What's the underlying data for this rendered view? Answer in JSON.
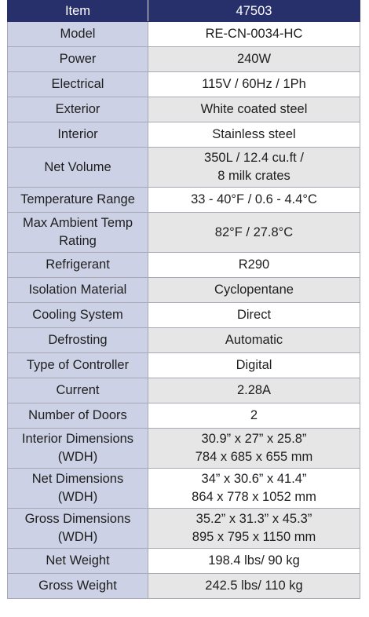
{
  "header": {
    "label": "Item",
    "value": "47503"
  },
  "rows": [
    {
      "label": [
        "Model"
      ],
      "value": [
        "RE-CN-0034-HC"
      ]
    },
    {
      "label": [
        "Power"
      ],
      "value": [
        "240W"
      ]
    },
    {
      "label": [
        "Electrical"
      ],
      "value": [
        "115V / 60Hz / 1Ph"
      ]
    },
    {
      "label": [
        "Exterior"
      ],
      "value": [
        "White coated steel"
      ]
    },
    {
      "label": [
        "Interior"
      ],
      "value": [
        "Stainless steel"
      ]
    },
    {
      "label": [
        "Net Volume"
      ],
      "value": [
        "350L / 12.4 cu.ft /",
        "8 milk crates"
      ]
    },
    {
      "label": [
        "Temperature Range"
      ],
      "value": [
        "33 - 40°F / 0.6 - 4.4°C"
      ]
    },
    {
      "label": [
        "Max Ambient Temp",
        "Rating"
      ],
      "value": [
        "82°F / 27.8°C"
      ]
    },
    {
      "label": [
        "Refrigerant"
      ],
      "value": [
        "R290"
      ]
    },
    {
      "label": [
        "Isolation Material"
      ],
      "value": [
        "Cyclopentane"
      ]
    },
    {
      "label": [
        "Cooling System"
      ],
      "value": [
        "Direct"
      ]
    },
    {
      "label": [
        "Defrosting"
      ],
      "value": [
        "Automatic"
      ]
    },
    {
      "label": [
        "Type of Controller"
      ],
      "value": [
        "Digital"
      ]
    },
    {
      "label": [
        "Current"
      ],
      "value": [
        "2.28A"
      ]
    },
    {
      "label": [
        "Number of Doors"
      ],
      "value": [
        "2"
      ]
    },
    {
      "label": [
        "Interior Dimensions",
        "(WDH)"
      ],
      "value": [
        "30.9” x 27” x 25.8”",
        "784 x 685 x 655 mm"
      ]
    },
    {
      "label": [
        "Net Dimensions",
        "(WDH)"
      ],
      "value": [
        "34” x 30.6” x 41.4”",
        "864 x 778 x 1052 mm"
      ]
    },
    {
      "label": [
        "Gross Dimensions",
        "(WDH)"
      ],
      "value": [
        "35.2” x 31.3” x 45.3”",
        "895 x 795 x 1150 mm"
      ]
    },
    {
      "label": [
        "Net Weight"
      ],
      "value": [
        "198.4 lbs/ 90 kg"
      ]
    },
    {
      "label": [
        "Gross Weight"
      ],
      "value": [
        "242.5 lbs/ 110 kg"
      ]
    }
  ]
}
